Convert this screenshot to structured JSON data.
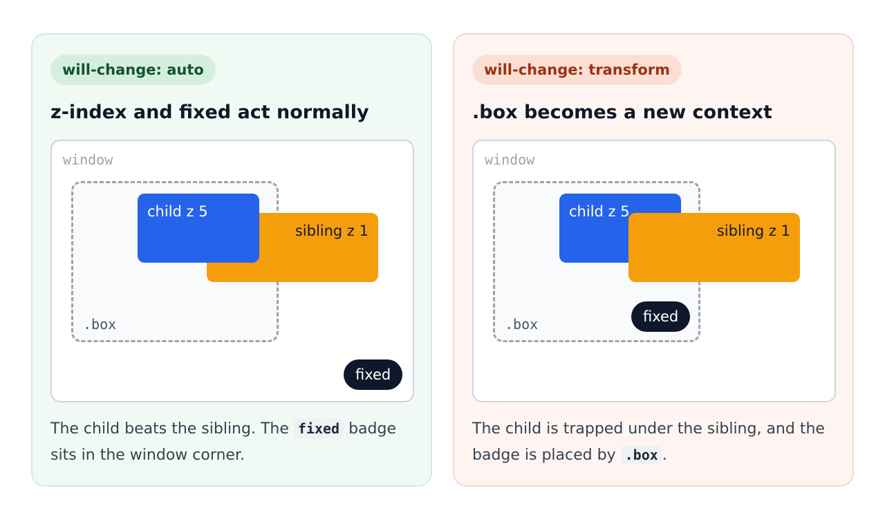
{
  "left_panel": {
    "pill": "will-change: auto",
    "heading": "z-index and fixed act normally",
    "window_label": "window",
    "box_label": ".box",
    "child_label": "child z 5",
    "sibling_label": "sibling z 1",
    "fixed_label": "fixed",
    "description": {
      "before": "The child beats the sibling. The ",
      "code": "fixed",
      "after": " badge sits in the window corner."
    }
  },
  "right_panel": {
    "pill": "will-change: transform",
    "heading": ".box becomes a new context",
    "window_label": "window",
    "box_label": ".box",
    "child_label": "child z 5",
    "sibling_label": "sibling z 1",
    "fixed_label": "fixed",
    "description": {
      "before": "The child is trapped under the sibling, and the badge is placed by ",
      "code": ".box",
      "after": "."
    }
  },
  "colors": {
    "child": "#2563eb",
    "sibling": "#f59e0b",
    "fixed_badge": "#0f172a",
    "left_accent": "#14532d",
    "right_accent": "#9a3412"
  }
}
